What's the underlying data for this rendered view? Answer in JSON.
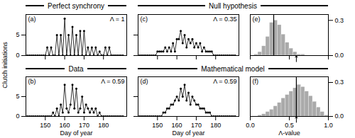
{
  "chart_data": [
    {
      "type": "line",
      "title": "Perfect synchrony",
      "ylabel": "Clutch initiations",
      "x": [
        140,
        141,
        142,
        143,
        144,
        145,
        146,
        147,
        148,
        149,
        150,
        151,
        152,
        153,
        154,
        155,
        156,
        157,
        158,
        159,
        160,
        161,
        162,
        163,
        164,
        165,
        166,
        167,
        168,
        169,
        170,
        171,
        172,
        173,
        174,
        175,
        176,
        177,
        178,
        179,
        180,
        181,
        182,
        183,
        184,
        185,
        186,
        187,
        188,
        189,
        190
      ],
      "values": [
        0,
        0,
        0,
        0,
        0,
        0,
        0,
        0,
        0,
        0,
        0,
        2,
        0,
        2,
        0,
        0,
        5,
        0,
        5,
        0,
        9,
        0,
        5,
        0,
        7,
        0,
        5,
        0,
        6,
        0,
        6,
        0,
        2,
        0,
        2,
        0,
        2,
        0,
        1,
        0,
        0,
        2,
        0,
        2,
        0,
        0,
        0,
        0,
        0,
        0,
        0
      ],
      "color": "#000000",
      "marker": "o",
      "annotations": [
        "(a)",
        "Λ = 1"
      ],
      "xlim": [
        140,
        192
      ],
      "xticks": [
        150,
        160,
        170,
        180
      ],
      "ylim": [
        0,
        10
      ],
      "yticks": [
        0,
        5
      ],
      "tick_labels": "y"
    },
    {
      "type": "line",
      "title": "Data",
      "xlabel": "Day of year",
      "x": [
        140,
        141,
        142,
        143,
        144,
        145,
        146,
        147,
        148,
        149,
        150,
        151,
        152,
        153,
        154,
        155,
        156,
        157,
        158,
        159,
        160,
        161,
        162,
        163,
        164,
        165,
        166,
        167,
        168,
        169,
        170,
        171,
        172,
        173,
        174,
        175,
        176,
        177,
        178,
        179,
        180,
        181,
        182,
        183,
        184,
        185,
        186,
        187,
        188,
        189,
        190
      ],
      "values": [
        0,
        0,
        0,
        0,
        0,
        0,
        0,
        0,
        0,
        0,
        0,
        0,
        0,
        0,
        1,
        0,
        2,
        0,
        3,
        1,
        8,
        2,
        1,
        3,
        8,
        2,
        7,
        1,
        2,
        5,
        1,
        3,
        2,
        1,
        2,
        1,
        2,
        0,
        1,
        0,
        0,
        0,
        0,
        0,
        0,
        0,
        0,
        0,
        0,
        0,
        0
      ],
      "color": "#000000",
      "marker": "o",
      "annotations": [
        "(b)",
        "Λ = 0.59"
      ],
      "xlim": [
        140,
        192
      ],
      "xticks": [
        150,
        160,
        170,
        180
      ],
      "ylim": [
        0,
        10
      ],
      "yticks": [
        0,
        5
      ]
    },
    {
      "type": "line",
      "title": "Null hypothesis",
      "x": [
        140,
        141,
        142,
        143,
        144,
        145,
        146,
        147,
        148,
        149,
        150,
        151,
        152,
        153,
        154,
        155,
        156,
        157,
        158,
        159,
        160,
        161,
        162,
        163,
        164,
        165,
        166,
        167,
        168,
        169,
        170,
        171,
        172,
        173,
        174,
        175,
        176,
        177,
        178,
        179,
        180,
        181,
        182,
        183,
        184,
        185,
        186,
        187,
        188,
        189,
        190
      ],
      "values": [
        0,
        0,
        0,
        0,
        0,
        0,
        0,
        0,
        0,
        0,
        1,
        1,
        1,
        1,
        2,
        1,
        2,
        1,
        3,
        1,
        4,
        4,
        6,
        3,
        5,
        2,
        4,
        3,
        4,
        2,
        3,
        2,
        3,
        1,
        2,
        1,
        1,
        1,
        1,
        0,
        0,
        0,
        0,
        0,
        0,
        0,
        0,
        0,
        0,
        0,
        0
      ],
      "color": "#000000",
      "marker": "o",
      "annotations": [
        "(c)",
        "Λ = 0.35"
      ],
      "xlim": [
        140,
        192
      ],
      "xticks": [
        150,
        160,
        170,
        180
      ],
      "ylim": [
        0,
        10
      ],
      "yticks": [
        0,
        5
      ],
      "tick_labels": false
    },
    {
      "type": "line",
      "title": "Mathematical model",
      "xlabel": "Day of year",
      "x": [
        140,
        141,
        142,
        143,
        144,
        145,
        146,
        147,
        148,
        149,
        150,
        151,
        152,
        153,
        154,
        155,
        156,
        157,
        158,
        159,
        160,
        161,
        162,
        163,
        164,
        165,
        166,
        167,
        168,
        169,
        170,
        171,
        172,
        173,
        174,
        175,
        176,
        177,
        178,
        179,
        180,
        181,
        182,
        183,
        184,
        185,
        186,
        187,
        188,
        189,
        190
      ],
      "values": [
        0,
        0,
        0,
        0,
        0,
        0,
        0,
        0,
        0,
        0,
        0,
        0,
        0,
        1,
        1,
        2,
        2,
        3,
        3,
        4,
        5,
        4,
        7,
        5,
        8,
        4,
        6,
        3,
        5,
        4,
        3,
        3,
        2,
        2,
        2,
        1,
        1,
        1,
        0,
        0,
        0,
        0,
        0,
        0,
        0,
        0,
        0,
        0,
        0,
        0,
        0
      ],
      "color": "#000000",
      "marker": "o",
      "annotations": [
        "(d)",
        "Λ = 0.59"
      ],
      "xlim": [
        140,
        192
      ],
      "xticks": [
        150,
        160,
        170,
        180
      ],
      "ylim": [
        0,
        10
      ],
      "yticks": [
        0,
        5
      ],
      "tick_labels": "x"
    },
    {
      "type": "histogram",
      "bins": [
        0.0,
        0.05,
        0.1,
        0.15,
        0.2,
        0.25,
        0.3,
        0.35,
        0.4,
        0.45,
        0.5,
        0.55,
        0.6,
        0.65,
        0.7,
        0.75,
        0.8,
        0.85,
        0.9,
        0.95,
        1.0
      ],
      "values": [
        0.0,
        0.01,
        0.03,
        0.08,
        0.16,
        0.28,
        0.3,
        0.26,
        0.18,
        0.11,
        0.06,
        0.03,
        0.01,
        0.01,
        0.0,
        0.0,
        0.0,
        0.0,
        0.0,
        0.0
      ],
      "color": "#aaaaaa",
      "mean": 0.3,
      "observed": 0.59,
      "annotations": [
        "(e)"
      ],
      "xlim": [
        0.0,
        1.0
      ],
      "xticks": [
        {
          "value": 0.0,
          "label": "0.0"
        },
        {
          "value": 0.5,
          "label": "0.5"
        },
        {
          "value": 1.0,
          "label": "1.0"
        }
      ],
      "ylim": [
        0.0,
        0.35
      ],
      "yticks": [
        {
          "value": 0.0,
          "label": "0.0"
        },
        {
          "value": 0.3,
          "label": "0.3"
        }
      ],
      "tick_labels": "y"
    },
    {
      "type": "histogram",
      "xlabel": "Λ-value",
      "bins": [
        0.0,
        0.05,
        0.1,
        0.15,
        0.2,
        0.25,
        0.3,
        0.35,
        0.4,
        0.45,
        0.5,
        0.55,
        0.6,
        0.65,
        0.7,
        0.75,
        0.8,
        0.85,
        0.9,
        0.95,
        1.0
      ],
      "values": [
        0.0,
        0.0,
        0.01,
        0.02,
        0.04,
        0.06,
        0.09,
        0.12,
        0.16,
        0.19,
        0.22,
        0.25,
        0.28,
        0.26,
        0.22,
        0.18,
        0.13,
        0.08,
        0.04,
        0.01
      ],
      "color": "#aaaaaa",
      "mean": 0.59,
      "observed": 0.59,
      "annotations": [
        "(f)"
      ],
      "xlim": [
        0.0,
        1.0
      ],
      "xticks": [
        {
          "value": 0.0,
          "label": "0.0"
        },
        {
          "value": 0.5,
          "label": "0.5"
        },
        {
          "value": 1.0,
          "label": "1.0"
        }
      ],
      "ylim": [
        0.0,
        0.35
      ],
      "yticks": [
        {
          "value": 0.0,
          "label": "0.0"
        },
        {
          "value": 0.3,
          "label": "0.3"
        }
      ]
    }
  ]
}
